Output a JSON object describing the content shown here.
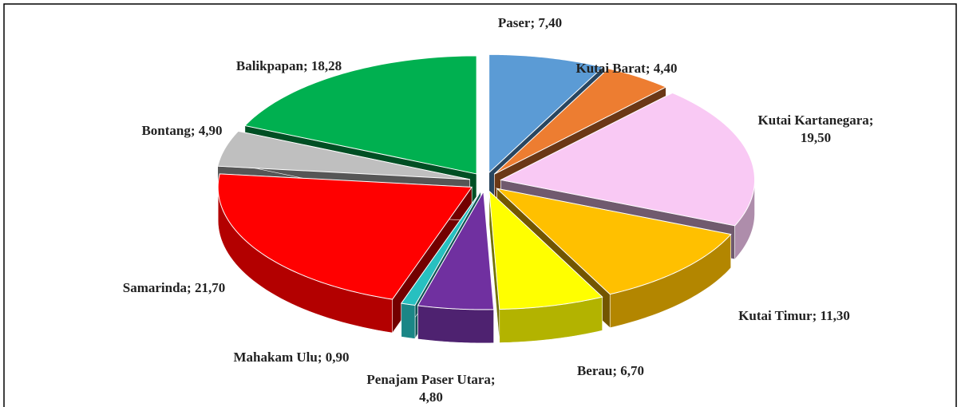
{
  "chart_data": {
    "type": "pie3d",
    "categories": [
      "Paser",
      "Kutai Barat",
      "Kutai Kartanegara",
      "Kutai Timur",
      "Berau",
      "Penajam Paser Utara",
      "Mahakam Ulu",
      "Samarinda",
      "Bontang",
      "Balikpapan"
    ],
    "values": [
      7.4,
      4.4,
      19.5,
      11.3,
      6.7,
      4.8,
      0.9,
      21.7,
      4.9,
      18.28
    ],
    "value_labels": [
      "Paser; 7,40",
      "Kutai Barat; 4,40",
      "Kutai Kartanegara; 19,50",
      "Kutai Timur; 11,30",
      "Berau; 6,70",
      "Penajam Paser Utara; 4,80",
      "Mahakam Ulu; 0,90",
      "Samarinda; 21,70",
      "Bontang; 4,90",
      "Balikpapan; 18,28"
    ],
    "colors": [
      "#5b9bd5",
      "#ed7d31",
      "#f9c9f4",
      "#ffc000",
      "#ffff00",
      "#7030a0",
      "#27c0c0",
      "#ff0000",
      "#bfbfbf",
      "#00b050"
    ]
  }
}
